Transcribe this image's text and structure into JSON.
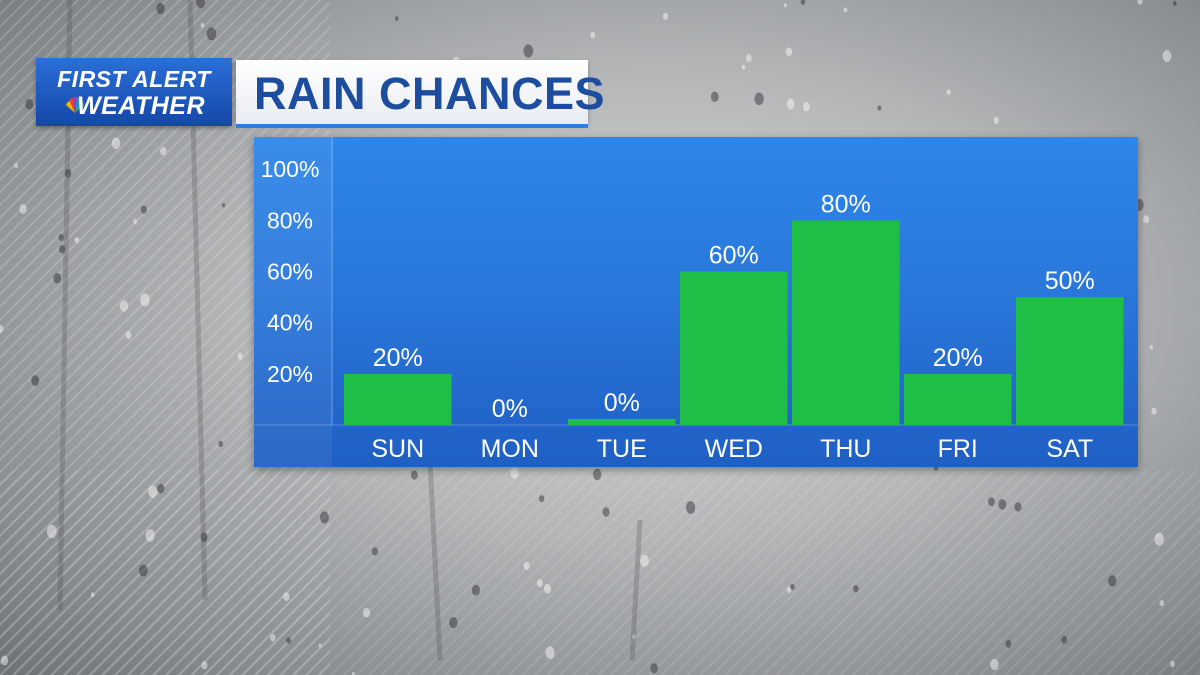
{
  "header": {
    "logo_line1": "FIRST ALERT",
    "logo_line2": "WEATHER",
    "title": "RAIN CHANCES"
  },
  "colors": {
    "panel_blue": "#2a78dc",
    "logo_blue": "#1a55bd",
    "title_text": "#1d4d9e",
    "bar_green": "#1fbf47",
    "label_white": "#ffffff"
  },
  "chart_data": {
    "type": "bar",
    "title": "RAIN CHANCES",
    "categories": [
      "SUN",
      "MON",
      "TUE",
      "WED",
      "THU",
      "FRI",
      "SAT"
    ],
    "values": [
      20,
      0,
      0,
      60,
      80,
      20,
      50
    ],
    "data_labels": [
      "20%",
      "0%",
      "0%",
      "60%",
      "80%",
      "20%",
      "50%"
    ],
    "ytick_values": [
      20,
      40,
      60,
      80,
      100
    ],
    "ytick_labels": [
      "20%",
      "40%",
      "60%",
      "80%",
      "100%"
    ],
    "ylim": [
      0,
      100
    ],
    "xlabel": "",
    "ylabel": "",
    "grid": false,
    "legend": "none"
  }
}
